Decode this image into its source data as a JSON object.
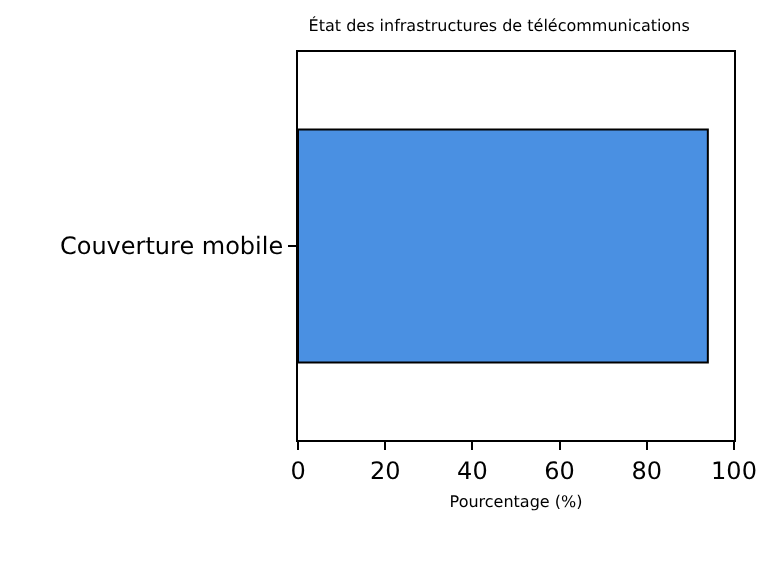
{
  "chart_data": {
    "type": "bar",
    "orientation": "horizontal",
    "title": "État des infrastructures de télécommunications",
    "xlabel": "Pourcentage (%)",
    "categories": [
      "Couverture mobile"
    ],
    "values": [
      94
    ],
    "color": "#4a90e2",
    "xlim": [
      0,
      100
    ],
    "xticks": [
      0,
      20,
      40,
      60,
      80,
      100
    ],
    "grid": false
  }
}
